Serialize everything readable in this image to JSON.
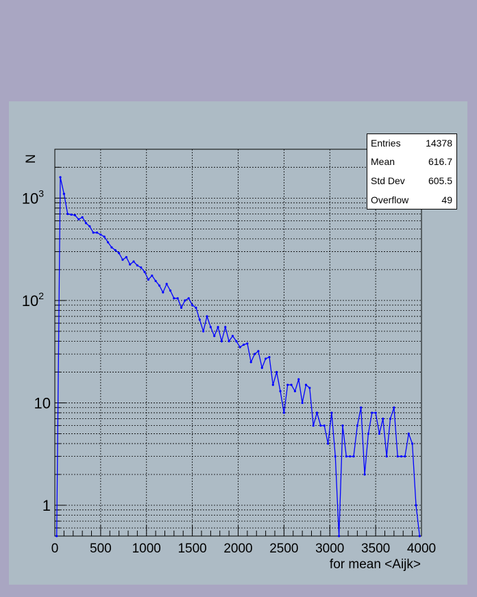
{
  "chart_data": {
    "type": "line",
    "xlabel": "for mean <Aijk>",
    "ylabel": "N",
    "xlim": [
      0,
      4000
    ],
    "ylim": [
      0.5,
      3000
    ],
    "yscale": "log",
    "grid": true,
    "x_ticks": [
      "0",
      "500",
      "1000",
      "1500",
      "2000",
      "2500",
      "3000",
      "3500",
      "4000"
    ],
    "y_ticks": [
      {
        "value": 1,
        "label": "1"
      },
      {
        "value": 10,
        "label": "10"
      },
      {
        "value": 100,
        "label": "10",
        "exp": "2"
      },
      {
        "value": 1000,
        "label": "10",
        "exp": "3"
      }
    ],
    "color": "#0000ff",
    "series": [
      {
        "x": [
          20,
          60,
          100,
          140,
          180,
          220,
          260,
          300,
          340,
          380,
          420,
          460,
          500,
          540,
          580,
          620,
          660,
          700,
          740,
          780,
          820,
          860,
          900,
          940,
          980,
          1020,
          1060,
          1100,
          1140,
          1180,
          1220,
          1260,
          1300,
          1340,
          1380,
          1420,
          1460,
          1500,
          1540,
          1580,
          1620,
          1660,
          1700,
          1740,
          1780,
          1820,
          1860,
          1900,
          1940,
          1980,
          2020,
          2060,
          2100,
          2140,
          2180,
          2220,
          2260,
          2300,
          2340,
          2380,
          2420,
          2460,
          2500,
          2540,
          2580,
          2620,
          2660,
          2700,
          2740,
          2780,
          2820,
          2860,
          2900,
          2940,
          2980,
          3020,
          3060,
          3100,
          3140,
          3180,
          3220,
          3260,
          3300,
          3340,
          3380,
          3420,
          3460,
          3500,
          3540,
          3580,
          3620,
          3660,
          3700,
          3740,
          3780,
          3820,
          3860,
          3900,
          3940,
          3980
        ],
        "y": [
          0.5,
          1600,
          1100,
          700,
          690,
          680,
          620,
          650,
          570,
          530,
          460,
          460,
          440,
          420,
          370,
          330,
          310,
          290,
          250,
          265,
          225,
          240,
          220,
          210,
          190,
          160,
          175,
          155,
          140,
          120,
          145,
          125,
          105,
          105,
          85,
          100,
          105,
          90,
          85,
          65,
          50,
          70,
          55,
          45,
          55,
          40,
          55,
          40,
          45,
          40,
          35,
          37,
          38,
          25,
          30,
          32,
          22,
          27,
          28,
          15,
          20,
          13,
          8,
          15,
          15,
          13,
          17,
          10,
          15,
          14,
          6,
          8,
          6,
          6,
          4,
          8,
          3,
          0.5,
          6,
          3,
          3,
          3,
          6,
          9,
          2,
          5,
          8,
          8,
          5,
          7,
          3,
          7,
          9,
          3,
          3,
          3,
          5,
          4,
          1,
          0.5
        ]
      }
    ]
  },
  "stats_box": {
    "rows": [
      {
        "label": "Entries",
        "value": "14378"
      },
      {
        "label": "Mean",
        "value": "616.7"
      },
      {
        "label": "Std Dev",
        "value": "605.5"
      },
      {
        "label": "Overflow",
        "value": "49"
      }
    ]
  }
}
